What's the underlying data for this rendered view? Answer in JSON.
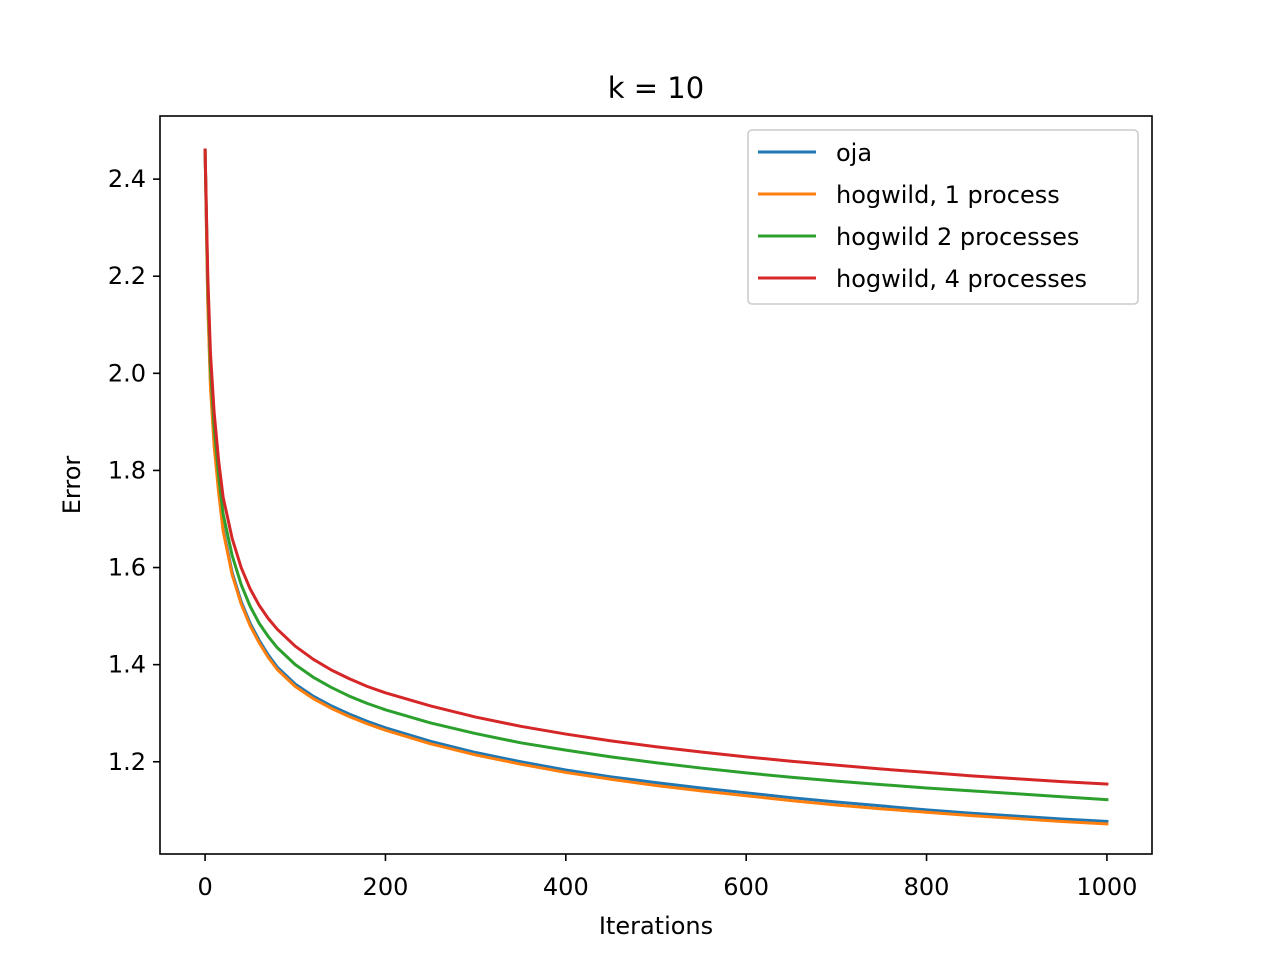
{
  "chart_data": {
    "type": "line",
    "title": "k = 10",
    "xlabel": "Iterations",
    "ylabel": "Error",
    "xlim": [
      -50,
      1050
    ],
    "ylim": [
      1.01,
      2.53
    ],
    "xticks": [
      0,
      200,
      400,
      600,
      800,
      1000
    ],
    "yticks": [
      1.2,
      1.4,
      1.6,
      1.8,
      2.0,
      2.2,
      2.4
    ],
    "xtick_labels": [
      "0",
      "200",
      "400",
      "600",
      "800",
      "1000"
    ],
    "ytick_labels": [
      "1.2",
      "1.4",
      "1.6",
      "1.8",
      "2.0",
      "2.2",
      "2.4"
    ],
    "grid": false,
    "legend": "top-right",
    "x": [
      0,
      3,
      6,
      10,
      15,
      20,
      30,
      40,
      50,
      60,
      70,
      80,
      100,
      120,
      140,
      160,
      180,
      200,
      250,
      300,
      350,
      400,
      450,
      500,
      550,
      600,
      650,
      700,
      750,
      800,
      850,
      900,
      950,
      1000
    ],
    "series": [
      {
        "name": "oja",
        "color": "#1f77b4",
        "values": [
          2.46,
          2.15,
          1.98,
          1.86,
          1.76,
          1.68,
          1.59,
          1.53,
          1.485,
          1.45,
          1.42,
          1.395,
          1.36,
          1.335,
          1.315,
          1.298,
          1.283,
          1.27,
          1.242,
          1.219,
          1.2,
          1.183,
          1.169,
          1.157,
          1.146,
          1.136,
          1.126,
          1.117,
          1.109,
          1.101,
          1.094,
          1.088,
          1.082,
          1.077
        ]
      },
      {
        "name": "hogwild, 1 process",
        "color": "#ff7f0e",
        "values": [
          2.46,
          2.14,
          1.97,
          1.85,
          1.755,
          1.675,
          1.585,
          1.525,
          1.48,
          1.445,
          1.415,
          1.39,
          1.355,
          1.33,
          1.31,
          1.293,
          1.278,
          1.265,
          1.237,
          1.214,
          1.195,
          1.178,
          1.164,
          1.151,
          1.14,
          1.13,
          1.12,
          1.111,
          1.103,
          1.096,
          1.089,
          1.083,
          1.077,
          1.072
        ]
      },
      {
        "name": "hogwild 2 processes",
        "color": "#2ca02c",
        "values": [
          2.46,
          2.18,
          2.01,
          1.89,
          1.79,
          1.71,
          1.625,
          1.565,
          1.52,
          1.485,
          1.458,
          1.435,
          1.4,
          1.374,
          1.353,
          1.335,
          1.32,
          1.307,
          1.28,
          1.258,
          1.239,
          1.224,
          1.21,
          1.198,
          1.187,
          1.177,
          1.168,
          1.16,
          1.153,
          1.146,
          1.14,
          1.134,
          1.128,
          1.122
        ]
      },
      {
        "name": "hogwild, 4 processes",
        "color": "#d62728",
        "values": [
          2.46,
          2.2,
          2.04,
          1.92,
          1.82,
          1.745,
          1.66,
          1.6,
          1.556,
          1.522,
          1.495,
          1.473,
          1.438,
          1.411,
          1.389,
          1.371,
          1.355,
          1.342,
          1.315,
          1.292,
          1.273,
          1.257,
          1.243,
          1.231,
          1.22,
          1.21,
          1.201,
          1.193,
          1.185,
          1.178,
          1.171,
          1.165,
          1.159,
          1.154
        ]
      }
    ]
  }
}
